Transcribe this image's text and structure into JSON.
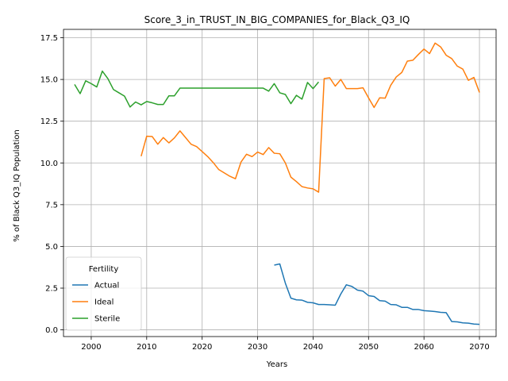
{
  "chart_data": {
    "type": "line",
    "title": "Score_3_in_TRUST_IN_BIG_COMPANIES_for_Black_Q3_IQ",
    "xlabel": "Years",
    "ylabel": "% of Black Q3_IQ Population",
    "xlim": [
      1995,
      2073
    ],
    "ylim": [
      -0.4,
      18.0
    ],
    "xticks": [
      2000,
      2010,
      2020,
      2030,
      2040,
      2050,
      2060,
      2070
    ],
    "yticks": [
      0.0,
      2.5,
      5.0,
      7.5,
      10.0,
      12.5,
      15.0,
      17.5
    ],
    "ytick_labels": [
      "0.0",
      "2.5",
      "5.0",
      "7.5",
      "10.0",
      "12.5",
      "15.0",
      "17.5"
    ],
    "grid": true,
    "legend": {
      "title": "Fertility",
      "placement": "lower-left"
    },
    "series": [
      {
        "name": "Actual",
        "color": "#1f77b4",
        "x": [
          2033,
          2034,
          2035,
          2036,
          2037,
          2038,
          2039,
          2040,
          2041,
          2042,
          2043,
          2044,
          2045,
          2046,
          2047,
          2048,
          2049,
          2050,
          2051,
          2052,
          2053,
          2054,
          2055,
          2056,
          2057,
          2058,
          2059,
          2060,
          2061,
          2062,
          2063,
          2064,
          2065,
          2066,
          2067,
          2068,
          2069,
          2070
        ],
        "values": [
          3.88,
          3.95,
          2.8,
          1.9,
          1.8,
          1.78,
          1.65,
          1.62,
          1.52,
          1.52,
          1.5,
          1.48,
          2.15,
          2.7,
          2.6,
          2.38,
          2.32,
          2.05,
          2.0,
          1.75,
          1.72,
          1.52,
          1.5,
          1.35,
          1.35,
          1.22,
          1.22,
          1.15,
          1.13,
          1.1,
          1.05,
          1.03,
          0.5,
          0.48,
          0.42,
          0.4,
          0.35,
          0.33
        ]
      },
      {
        "name": "Ideal",
        "color": "#ff7f0e",
        "x": [
          2009,
          2010,
          2011,
          2012,
          2013,
          2014,
          2015,
          2016,
          2017,
          2018,
          2019,
          2020,
          2021,
          2022,
          2023,
          2024,
          2025,
          2026,
          2027,
          2028,
          2029,
          2030,
          2031,
          2032,
          2033,
          2034,
          2035,
          2036,
          2037,
          2038,
          2039,
          2040,
          2041,
          2042,
          2043,
          2044,
          2045,
          2046,
          2047,
          2048,
          2049,
          2050,
          2051,
          2052,
          2053,
          2054,
          2055,
          2056,
          2057,
          2058,
          2059,
          2060,
          2061,
          2062,
          2063,
          2064,
          2065,
          2066,
          2067,
          2068,
          2069,
          2070
        ],
        "values": [
          10.4,
          11.6,
          11.58,
          11.12,
          11.52,
          11.2,
          11.5,
          11.92,
          11.52,
          11.12,
          10.98,
          10.68,
          10.38,
          10.02,
          9.6,
          9.4,
          9.2,
          9.05,
          10.05,
          10.52,
          10.38,
          10.65,
          10.5,
          10.92,
          10.58,
          10.55,
          10.0,
          9.15,
          8.88,
          8.58,
          8.5,
          8.45,
          8.25,
          15.05,
          15.1,
          14.6,
          15.0,
          14.45,
          14.45,
          14.45,
          14.5,
          13.9,
          13.32,
          13.9,
          13.88,
          14.65,
          15.15,
          15.42,
          16.1,
          16.15,
          16.5,
          16.82,
          16.55,
          17.18,
          16.95,
          16.45,
          16.25,
          15.8,
          15.62,
          14.95,
          15.12,
          14.22
        ]
      },
      {
        "name": "Sterile",
        "color": "#2ca02c",
        "x": [
          1997,
          1998,
          1999,
          2000,
          2001,
          2002,
          2003,
          2004,
          2005,
          2006,
          2007,
          2008,
          2009,
          2010,
          2011,
          2012,
          2013,
          2014,
          2015,
          2016,
          2017,
          2018,
          2019,
          2020,
          2021,
          2022,
          2023,
          2024,
          2025,
          2026,
          2027,
          2028,
          2029,
          2030,
          2031,
          2032,
          2033,
          2034,
          2035,
          2036,
          2037,
          2038,
          2039,
          2040,
          2041
        ],
        "values": [
          14.7,
          14.15,
          14.92,
          14.75,
          14.55,
          15.5,
          15.05,
          14.4,
          14.2,
          14.0,
          13.35,
          13.65,
          13.48,
          13.68,
          13.6,
          13.5,
          13.5,
          14.02,
          14.02,
          14.48,
          14.48,
          14.48,
          14.48,
          14.48,
          14.48,
          14.48,
          14.48,
          14.48,
          14.48,
          14.48,
          14.48,
          14.48,
          14.48,
          14.48,
          14.48,
          14.3,
          14.75,
          14.2,
          14.1,
          13.55,
          14.05,
          13.82,
          14.82,
          14.45,
          14.85
        ]
      }
    ]
  }
}
